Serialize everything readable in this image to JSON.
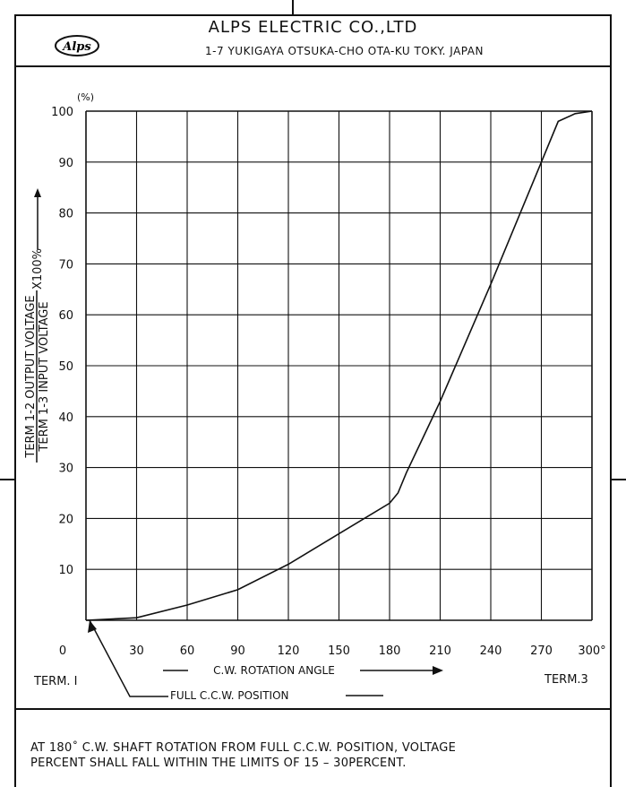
{
  "header": {
    "company": "ALPS ELECTRIC  CO.,LTD",
    "address": "1-7 YUKIGAYA OTSUKA-CHO OTA-KU TOKY. JAPAN",
    "logo_text": "Alps"
  },
  "chart_data": {
    "type": "line",
    "xlabel": "C.W. ROTATION ANGLE",
    "ylabel_numerator": "TERM 1-2 OUTPUT VOLTAGE",
    "ylabel_denominator": "TERM 1-3  INPUT VOLTAGE",
    "ylabel_factor": "X100%",
    "yunit": "(%)",
    "xlim": [
      0,
      300
    ],
    "ylim": [
      0,
      100
    ],
    "grid": true,
    "x_ticks": [
      "0",
      "30",
      "60",
      "90",
      "120",
      "150",
      "180",
      "210",
      "240",
      "270",
      "300°"
    ],
    "y_ticks": [
      "10",
      "20",
      "30",
      "40",
      "50",
      "60",
      "70",
      "80",
      "90",
      "100"
    ],
    "series": [
      {
        "x": [
          0,
          30,
          60,
          90,
          120,
          150,
          180,
          185,
          190,
          200,
          210,
          240,
          270,
          280,
          290,
          300
        ],
        "values": [
          0,
          0.5,
          3,
          6,
          11,
          17,
          23,
          25,
          29,
          36,
          43,
          66,
          90,
          98,
          99.5,
          100
        ]
      }
    ],
    "start_label": "TERM. I",
    "end_label": "TERM.3",
    "ccw_label": "FULL C.C.W. POSITION"
  },
  "footer": {
    "line1": "AT 180˚ C.W. SHAFT ROTATION FROM FULL C.C.W. POSITION, VOLTAGE",
    "line2": "PERCENT SHALL FALL WITHIN THE LIMITS OF 15 – 30PERCENT."
  }
}
